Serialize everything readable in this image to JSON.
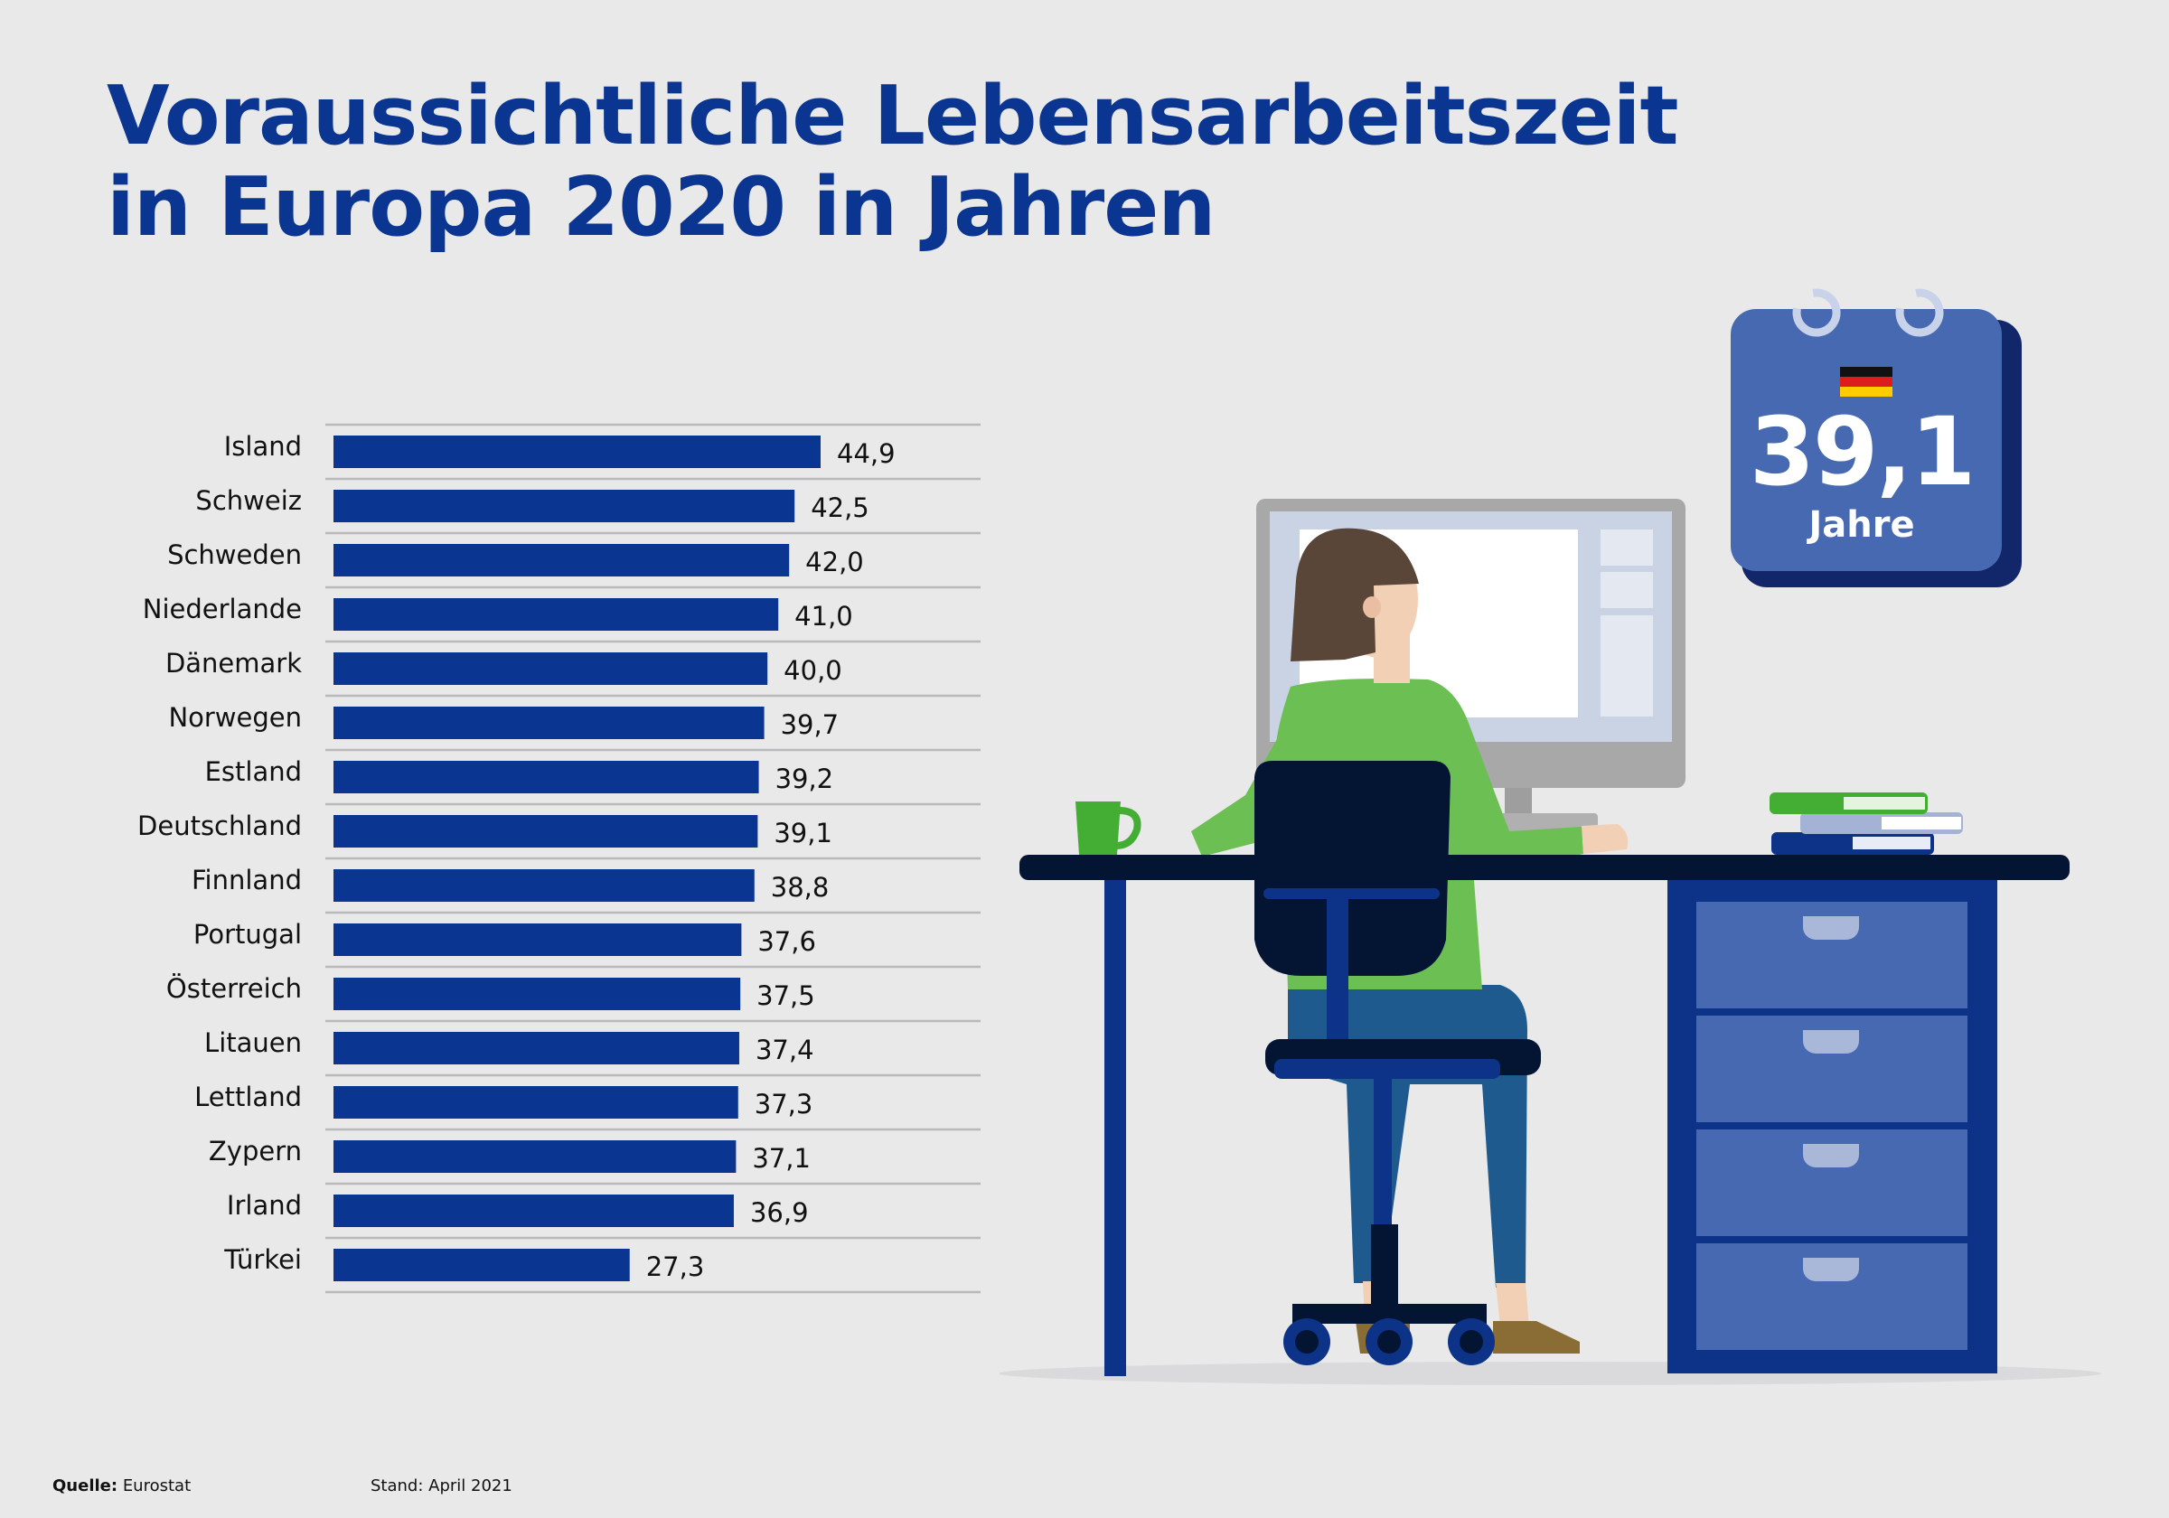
{
  "title_lines": [
    "Voraussichtliche Lebensarbeitszeit",
    "in Europa 2020 in Jahren"
  ],
  "chart_data": {
    "type": "bar",
    "orientation": "horizontal",
    "title": "Voraussichtliche Lebensarbeitszeit in Europa 2020 in Jahren",
    "categories": [
      "Island",
      "Schweiz",
      "Schweden",
      "Niederlande",
      "Dänemark",
      "Norwegen",
      "Estland",
      "Deutschland",
      "Finnland",
      "Portugal",
      "Österreich",
      "Litauen",
      "Lettland",
      "Zypern",
      "Irland",
      "Türkei"
    ],
    "values": [
      44.9,
      42.5,
      42.0,
      41.0,
      40.0,
      39.7,
      39.2,
      39.1,
      38.8,
      37.6,
      37.5,
      37.4,
      37.3,
      37.1,
      36.9,
      27.3
    ],
    "value_labels": [
      "44,9",
      "42,5",
      "42,0",
      "41,0",
      "40,0",
      "39,7",
      "39,2",
      "39,1",
      "38,8",
      "37,6",
      "37,5",
      "37,4",
      "37,3",
      "37,1",
      "36,9",
      "27,3"
    ],
    "xlabel": "",
    "ylabel": "",
    "xlim": [
      0,
      60
    ],
    "grid": true,
    "bar_color": "#0a3591"
  },
  "callout": {
    "value": "39,1",
    "unit": "Jahre",
    "flag_icon": "germany-flag-icon",
    "calendar_color": "#4669b2"
  },
  "footer": {
    "source_label": "Quelle:",
    "source_value": "Eurostat",
    "date_text": "Stand: April 2021"
  }
}
